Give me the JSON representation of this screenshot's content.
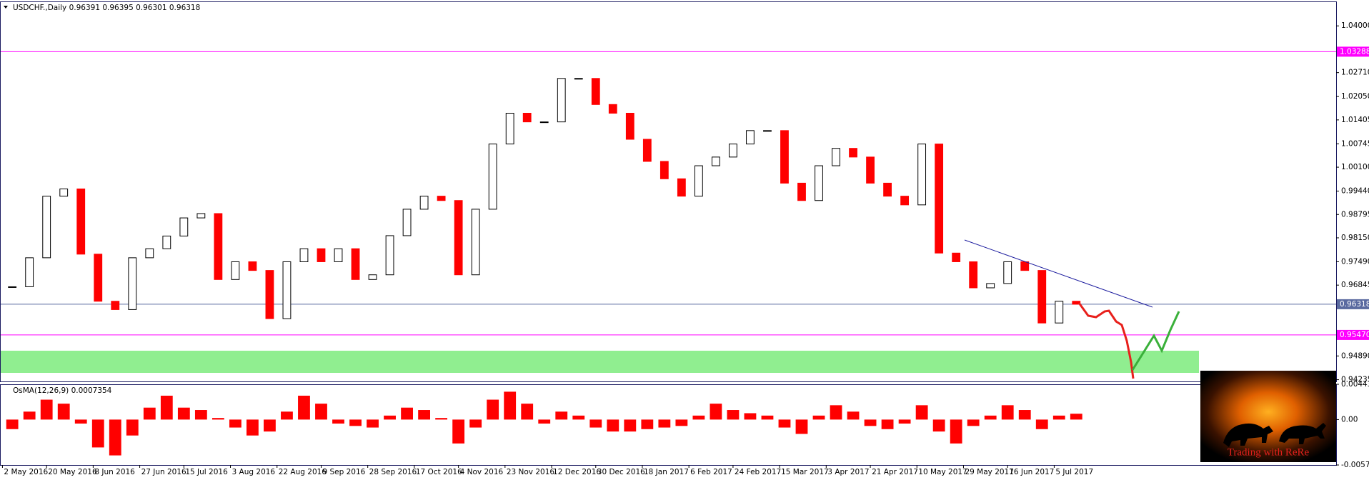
{
  "chart_data": [
    {
      "type": "candlestick",
      "title": "USDCHF.,Daily  0.96391 0.96395 0.96301 0.96318",
      "x": [
        "2016-05-06",
        "2016-05-13",
        "2016-05-20",
        "2016-05-27",
        "2016-06-03",
        "2016-06-10",
        "2016-06-17",
        "2016-06-24",
        "2016-07-01",
        "2016-07-08",
        "2016-07-15",
        "2016-07-22",
        "2016-07-29",
        "2016-08-05",
        "2016-08-12",
        "2016-08-19",
        "2016-08-26",
        "2016-09-02",
        "2016-09-09",
        "2016-09-16",
        "2016-09-23",
        "2016-09-30",
        "2016-10-07",
        "2016-10-14",
        "2016-10-21",
        "2016-10-28",
        "2016-11-04",
        "2016-11-11",
        "2016-11-18",
        "2016-11-25",
        "2016-12-02",
        "2016-12-09",
        "2016-12-16",
        "2016-12-23",
        "2016-12-30",
        "2017-01-06",
        "2017-01-13",
        "2017-01-20",
        "2017-01-27",
        "2017-02-03",
        "2017-02-10",
        "2017-02-17",
        "2017-02-24",
        "2017-03-03",
        "2017-03-10",
        "2017-03-17",
        "2017-03-24",
        "2017-03-31",
        "2017-04-07",
        "2017-04-14",
        "2017-04-21",
        "2017-04-28",
        "2017-05-05",
        "2017-05-12",
        "2017-05-19",
        "2017-05-26",
        "2017-06-02",
        "2017-06-09",
        "2017-06-16",
        "2017-06-23",
        "2017-06-30",
        "2017-07-07",
        "2017-07-14"
      ],
      "close": [
        0.968,
        0.976,
        0.993,
        0.995,
        0.977,
        0.964,
        0.9617,
        0.976,
        0.9785,
        0.982,
        0.987,
        0.9882,
        0.97,
        0.9749,
        0.9725,
        0.9592,
        0.9749,
        0.9785,
        0.9749,
        0.9785,
        0.97,
        0.9713,
        0.9821,
        0.9894,
        0.993,
        0.9918,
        0.9713,
        0.9894,
        1.0074,
        1.0159,
        1.0135,
        1.0135,
        1.0255,
        1.0255,
        1.0183,
        1.0159,
        1.0087,
        1.0026,
        0.9978,
        0.993,
        1.0014,
        1.0038,
        1.0074,
        1.0111,
        1.0111,
        0.9966,
        0.9918,
        1.0014,
        1.0062,
        1.0038,
        0.9966,
        0.993,
        0.9906,
        1.0074,
        0.9773,
        0.9749,
        0.9677,
        0.9689,
        0.9749,
        0.9725,
        0.958,
        0.964,
        0.96318
      ],
      "up_color": "#000000",
      "down_color": "#ff0000",
      "xlim": [
        "2016-05-01",
        "2017-10-28"
      ],
      "xticks": [
        {
          "value": "2016-05-02",
          "label": "2 May 2016"
        },
        {
          "value": "2016-05-20",
          "label": "20 May 2016"
        },
        {
          "value": "2016-06-08",
          "label": "8 Jun 2016"
        },
        {
          "value": "2016-06-27",
          "label": "27 Jun 2016"
        },
        {
          "value": "2016-07-15",
          "label": "15 Jul 2016"
        },
        {
          "value": "2016-08-03",
          "label": "3 Aug 2016"
        },
        {
          "value": "2016-08-22",
          "label": "22 Aug 2016"
        },
        {
          "value": "2016-09-09",
          "label": "9 Sep 2016"
        },
        {
          "value": "2016-09-28",
          "label": "28 Sep 2016"
        },
        {
          "value": "2016-10-17",
          "label": "17 Oct 2016"
        },
        {
          "value": "2016-11-04",
          "label": "4 Nov 2016"
        },
        {
          "value": "2016-11-23",
          "label": "23 Nov 2016"
        },
        {
          "value": "2016-12-12",
          "label": "12 Dec 2016"
        },
        {
          "value": "2016-12-30",
          "label": "30 Dec 2016"
        },
        {
          "value": "2017-01-18",
          "label": "18 Jan 2017"
        },
        {
          "value": "2017-02-06",
          "label": "6 Feb 2017"
        },
        {
          "value": "2017-02-24",
          "label": "24 Feb 2017"
        },
        {
          "value": "2017-03-15",
          "label": "15 Mar 2017"
        },
        {
          "value": "2017-04-03",
          "label": "3 Apr 2017"
        },
        {
          "value": "2017-04-21",
          "label": "21 Apr 2017"
        },
        {
          "value": "2017-05-10",
          "label": "10 May 2017"
        },
        {
          "value": "2017-05-29",
          "label": "29 May 2017"
        },
        {
          "value": "2017-06-16",
          "label": "16 Jun 2017"
        },
        {
          "value": "2017-07-05",
          "label": "5 Jul 2017"
        }
      ],
      "ylim": [
        0.94187,
        1.04675
      ],
      "yticks": [
        {
          "value": 1.04,
          "label": "1.04000"
        },
        {
          "value": 1.0271,
          "label": "1.02710"
        },
        {
          "value": 1.0205,
          "label": "1.02050"
        },
        {
          "value": 1.01405,
          "label": "1.01405"
        },
        {
          "value": 1.00745,
          "label": "1.00745"
        },
        {
          "value": 1.001,
          "label": "1.00100"
        },
        {
          "value": 0.9944,
          "label": "0.99440"
        },
        {
          "value": 0.98795,
          "label": "0.98795"
        },
        {
          "value": 0.9815,
          "label": "0.98150"
        },
        {
          "value": 0.9749,
          "label": "0.97490"
        },
        {
          "value": 0.96845,
          "label": "0.96845"
        },
        {
          "value": 0.9489,
          "label": "0.94890"
        },
        {
          "value": 0.94235,
          "label": "0.94235"
        }
      ],
      "levels": [
        {
          "value": 1.03288,
          "label": "1.03288",
          "color": "#ff00ff"
        },
        {
          "value": 0.96318,
          "label": "0.96318",
          "color": "#5a6aa0"
        },
        {
          "value": 0.9547,
          "label": "0.95470",
          "color": "#ff00ff"
        }
      ]
    },
    {
      "type": "bar",
      "title": "OsMA(12,26,9) 0.0007354",
      "x": [
        "2016-05-06",
        "2016-05-13",
        "2016-05-20",
        "2016-05-27",
        "2016-06-03",
        "2016-06-10",
        "2016-06-17",
        "2016-06-24",
        "2016-07-01",
        "2016-07-08",
        "2016-07-15",
        "2016-07-22",
        "2016-07-29",
        "2016-08-05",
        "2016-08-12",
        "2016-08-19",
        "2016-08-26",
        "2016-09-02",
        "2016-09-09",
        "2016-09-16",
        "2016-09-23",
        "2016-09-30",
        "2016-10-07",
        "2016-10-14",
        "2016-10-21",
        "2016-10-28",
        "2016-11-04",
        "2016-11-11",
        "2016-11-18",
        "2016-11-25",
        "2016-12-02",
        "2016-12-09",
        "2016-12-16",
        "2016-12-23",
        "2016-12-30",
        "2017-01-06",
        "2017-01-13",
        "2017-01-20",
        "2017-01-27",
        "2017-02-03",
        "2017-02-10",
        "2017-02-17",
        "2017-02-24",
        "2017-03-03",
        "2017-03-10",
        "2017-03-17",
        "2017-03-24",
        "2017-03-31",
        "2017-04-07",
        "2017-04-14",
        "2017-04-21",
        "2017-04-28",
        "2017-05-05",
        "2017-05-12",
        "2017-05-19",
        "2017-05-26",
        "2017-06-02",
        "2017-06-09",
        "2017-06-16",
        "2017-06-23",
        "2017-06-30",
        "2017-07-07",
        "2017-07-14"
      ],
      "values": [
        -0.0012,
        0.001,
        0.0025,
        0.002,
        -0.0005,
        -0.0035,
        -0.0045,
        -0.002,
        0.0015,
        0.003,
        0.0015,
        0.0012,
        0.0002,
        -0.001,
        -0.002,
        -0.0015,
        0.001,
        0.003,
        0.002,
        -0.0005,
        -0.0008,
        -0.001,
        0.0005,
        0.0015,
        0.0012,
        0.0002,
        -0.003,
        -0.001,
        0.0025,
        0.0035,
        0.002,
        -0.0005,
        0.001,
        0.0005,
        -0.001,
        -0.0015,
        -0.0015,
        -0.0012,
        -0.001,
        -0.0008,
        0.0005,
        0.002,
        0.0012,
        0.0008,
        0.0005,
        -0.001,
        -0.0018,
        0.0005,
        0.0018,
        0.001,
        -0.0008,
        -0.0012,
        -0.0005,
        0.0018,
        -0.0015,
        -0.003,
        -0.0008,
        0.0005,
        0.0018,
        0.0012,
        -0.0012,
        0.0005,
        0.0007354
      ],
      "color": "#ff0000",
      "xlim": [
        "2016-05-01",
        "2017-10-28"
      ],
      "ylim": [
        -0.005705,
        0.004432
      ],
      "yticks": [
        0.004432,
        {
          "value": 0,
          "label": "0.00"
        },
        -0.005705
      ]
    }
  ],
  "logo": {
    "text": "Trading with ReRe"
  }
}
